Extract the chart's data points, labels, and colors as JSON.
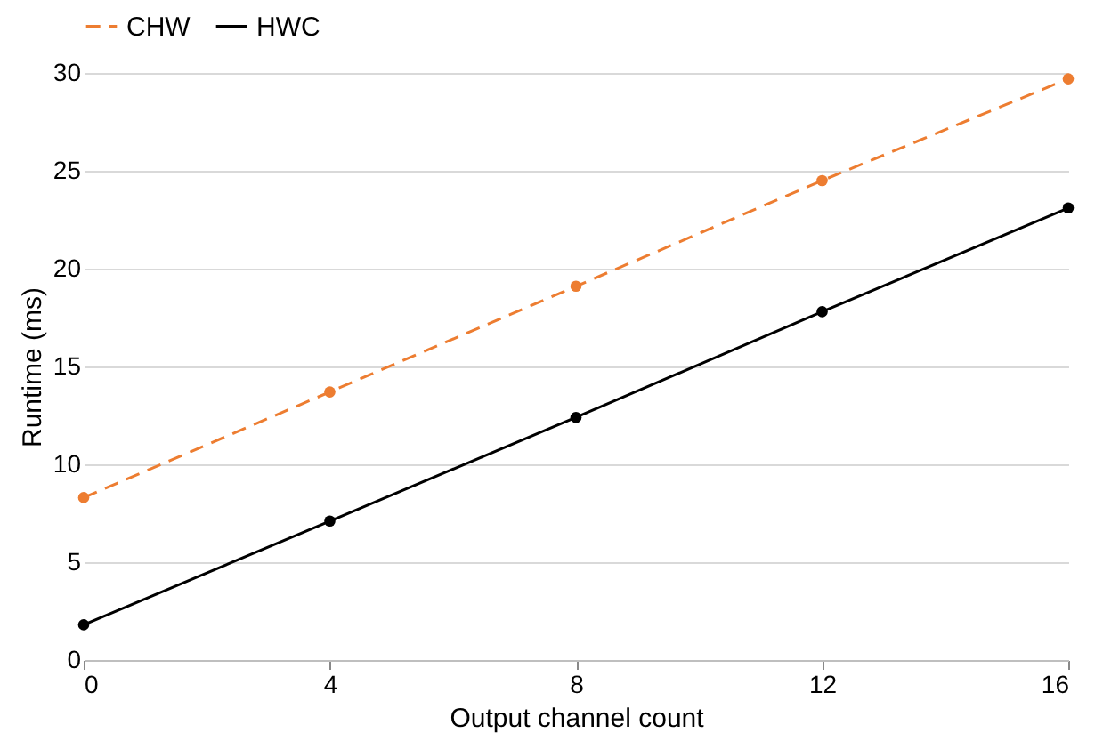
{
  "chart_data": {
    "type": "line",
    "xlabel": "Output channel count",
    "ylabel": "Runtime (ms)",
    "x": [
      0,
      4,
      8,
      12,
      16
    ],
    "series": [
      {
        "name": "CHW",
        "color": "#ed7d31",
        "line_style": "dashed",
        "values": [
          8.3,
          13.7,
          19.1,
          24.5,
          29.7
        ]
      },
      {
        "name": "HWC",
        "color": "#000000",
        "line_style": "solid",
        "values": [
          1.8,
          7.1,
          12.4,
          17.8,
          23.1
        ]
      }
    ],
    "xlim": [
      0,
      16
    ],
    "xticks": [
      0,
      4,
      8,
      12,
      16
    ],
    "ylim": [
      0,
      30
    ],
    "yticks": [
      0,
      5,
      10,
      15,
      20,
      25,
      30
    ],
    "grid": "y",
    "legend": "top",
    "marker": "circle"
  }
}
